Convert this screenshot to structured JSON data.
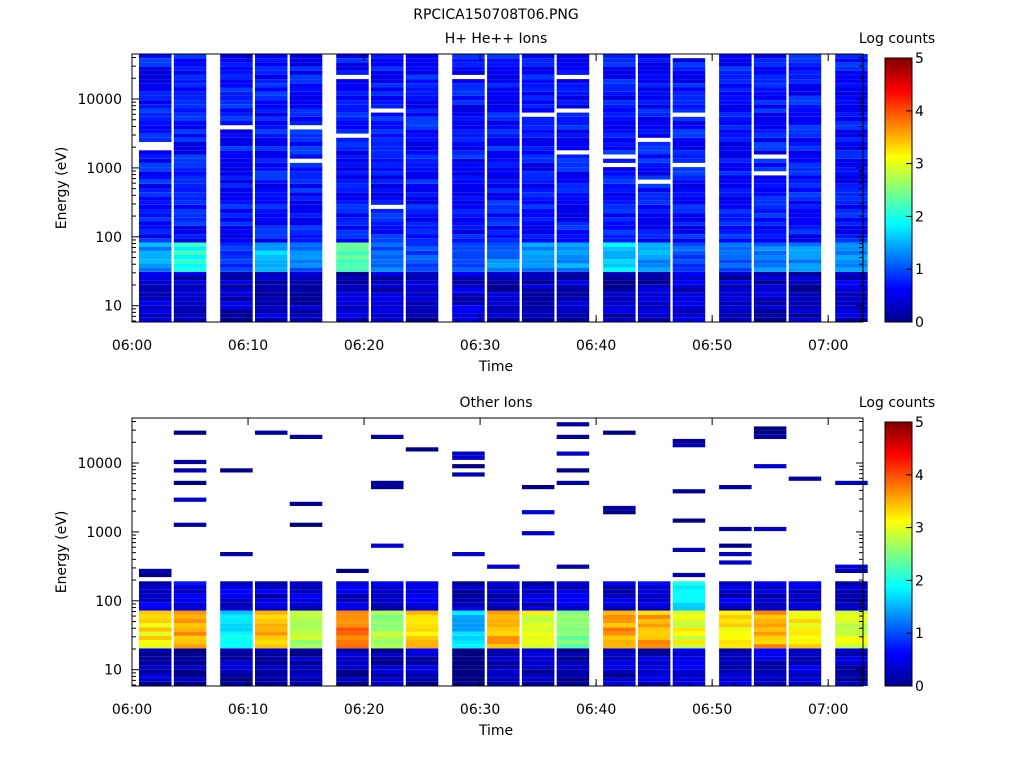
{
  "figure_title": "RPCICA150708T06.PNG",
  "chart_data": [
    {
      "type": "heatmap",
      "title": "H+ He++ Ions",
      "xlabel": "Time",
      "ylabel": "Energy (eV)",
      "x_ticks": [
        "06:00",
        "06:10",
        "06:20",
        "06:30",
        "06:40",
        "06:50",
        "07:00"
      ],
      "x_range": [
        "06:00",
        "07:03"
      ],
      "y_scale": "log",
      "y_ticks": [
        "10",
        "100",
        "1000",
        "10000"
      ],
      "y_range": [
        5.8,
        45000
      ],
      "colorbar": {
        "label": "Log counts",
        "ticks": [
          "0",
          "1",
          "2",
          "3",
          "4",
          "5"
        ],
        "range": [
          0,
          5
        ]
      },
      "time_bins": [
        "06:02",
        "06:05",
        "06:09",
        "06:12",
        "06:15",
        "06:19",
        "06:22",
        "06:25",
        "06:29",
        "06:32",
        "06:35",
        "06:38",
        "06:42",
        "06:45",
        "06:48",
        "06:52",
        "06:55",
        "06:58",
        "07:02"
      ],
      "energy_bands": [
        {
          "range_eV": [
            6,
            30
          ],
          "log_counts": [
            0.4,
            0.3,
            0.3,
            0.3,
            0.3,
            0.3,
            0.3,
            0.3,
            0.4,
            0.3,
            0.3,
            0.3,
            0.3,
            0.3,
            0.4,
            0.3,
            0.3,
            0.3,
            0.4
          ]
        },
        {
          "range_eV": [
            30,
            80
          ],
          "log_counts": [
            1.4,
            2.0,
            1.0,
            1.6,
            1.2,
            2.3,
            1.1,
            1.0,
            1.0,
            1.2,
            1.3,
            1.4,
            1.7,
            1.4,
            1.0,
            1.1,
            1.3,
            1.3,
            1.4
          ]
        },
        {
          "range_eV": [
            80,
            45000
          ],
          "log_counts": [
            0.7,
            0.7,
            0.7,
            0.7,
            0.7,
            0.7,
            0.7,
            0.7,
            0.7,
            0.7,
            0.7,
            0.7,
            0.7,
            0.7,
            0.7,
            0.7,
            0.7,
            0.7,
            0.7
          ]
        }
      ]
    },
    {
      "type": "heatmap",
      "title": "Other Ions",
      "xlabel": "Time",
      "ylabel": "Energy (eV)",
      "x_ticks": [
        "06:00",
        "06:10",
        "06:20",
        "06:30",
        "06:40",
        "06:50",
        "07:00"
      ],
      "x_range": [
        "06:00",
        "07:03"
      ],
      "y_scale": "log",
      "y_ticks": [
        "10",
        "100",
        "1000",
        "10000"
      ],
      "y_range": [
        5.8,
        45000
      ],
      "colorbar": {
        "label": "Log counts",
        "ticks": [
          "0",
          "1",
          "2",
          "3",
          "4",
          "5"
        ],
        "range": [
          0,
          5
        ]
      },
      "time_bins": [
        "06:02",
        "06:05",
        "06:09",
        "06:12",
        "06:15",
        "06:19",
        "06:22",
        "06:25",
        "06:29",
        "06:32",
        "06:35",
        "06:38",
        "06:42",
        "06:45",
        "06:48",
        "06:52",
        "06:55",
        "06:58",
        "07:02"
      ],
      "energy_bands": [
        {
          "range_eV": [
            6,
            20
          ],
          "log_counts": [
            0.3,
            0.2,
            0.3,
            0.2,
            0.2,
            0.2,
            0.2,
            0.3,
            0.0,
            0.2,
            0.2,
            0.2,
            0.3,
            0.3,
            0.5,
            0.4,
            0.4,
            0.4,
            0.3
          ]
        },
        {
          "range_eV": [
            20,
            70
          ],
          "log_counts": [
            3.2,
            3.6,
            1.8,
            3.5,
            2.8,
            3.8,
            2.7,
            3.3,
            1.6,
            3.5,
            3.0,
            2.5,
            3.6,
            3.5,
            3.0,
            3.2,
            3.5,
            3.2,
            3.0
          ]
        },
        {
          "range_eV": [
            70,
            200
          ],
          "log_counts": [
            0.4,
            0.5,
            0.4,
            0.4,
            0.4,
            0.4,
            0.4,
            0.4,
            0.3,
            0.4,
            0.4,
            0.4,
            0.4,
            0.5,
            1.8,
            0.4,
            0.4,
            0.4,
            0.4
          ]
        },
        {
          "range_eV": [
            200,
            45000
          ],
          "log_counts": [
            0.2,
            0.2,
            0.2,
            0.2,
            0.2,
            0.2,
            0.2,
            0.2,
            0.2,
            0.2,
            0.2,
            0.2,
            0.2,
            0.2,
            0.2,
            0.2,
            0.2,
            0.2,
            0.2
          ]
        }
      ]
    }
  ]
}
